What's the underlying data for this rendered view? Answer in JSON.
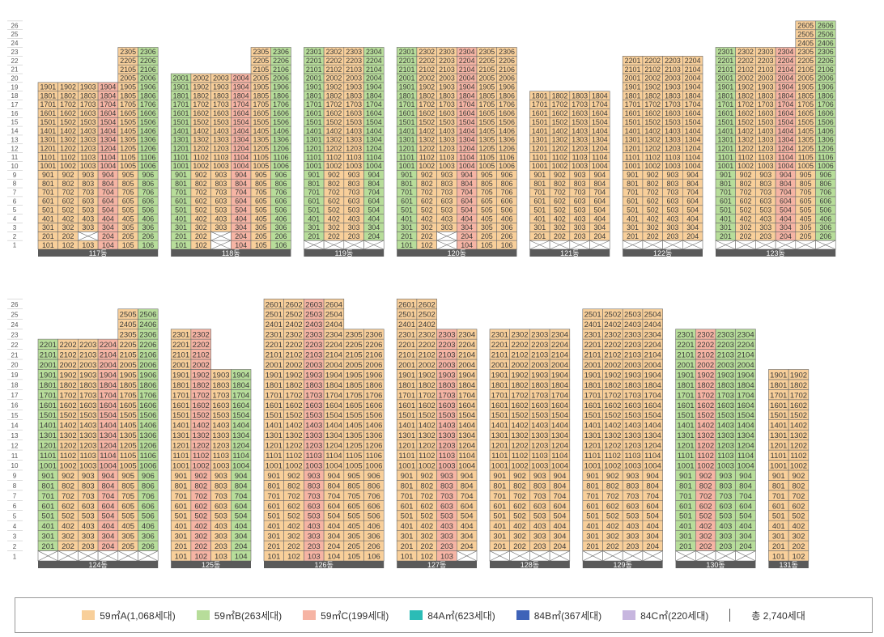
{
  "colors": {
    "A": "#f8cf9a",
    "B": "#b7dd9a",
    "C": "#f6b4a4",
    "D": "#2bbcb6",
    "E": "#3f63b8",
    "F": "#c7b6df",
    "none": "#ffffff",
    "base": "#5a5a5a"
  },
  "floor_labels": [
    "1",
    "2",
    "3",
    "4",
    "5",
    "6",
    "7",
    "8",
    "9",
    "10",
    "11",
    "12",
    "13",
    "14",
    "15",
    "16",
    "17",
    "18",
    "19",
    "20",
    "21",
    "22",
    "23",
    "24",
    "25",
    "26"
  ],
  "buildings": [
    {
      "name": "117동",
      "row": 0,
      "columns": [
        {
          "bottom": 1,
          "top": 19,
          "colors": "AAAAAAAAAAAAAAAAAAA",
          "void": []
        },
        {
          "bottom": 1,
          "top": 19,
          "colors": "AAAAAAAAAAAAAAAAAAA",
          "void": []
        },
        {
          "bottom": 1,
          "top": 19,
          "colors": "AAAAAAAAAAAAAAAAAAA",
          "void": [
            2
          ]
        },
        {
          "bottom": 1,
          "top": 19,
          "colors": "CCCCCCCCCCCCCCCCCCC",
          "void": []
        },
        {
          "bottom": 1,
          "top": 23,
          "colors": "AAAAAAAAAAAAAAAAAAAAAAA",
          "void": []
        },
        {
          "bottom": 1,
          "top": 23,
          "colors": "BBBBBBBBBBBBBBBBBBBBBBB",
          "void": []
        }
      ]
    },
    {
      "name": "118동",
      "row": 0,
      "columns": [
        {
          "bottom": 1,
          "top": 20,
          "colors": "BBBBBBBBBBBBBBBBBBBB",
          "void": []
        },
        {
          "bottom": 1,
          "top": 20,
          "colors": "AAAAAAAAAAAAAAAAAAAA",
          "void": []
        },
        {
          "bottom": 1,
          "top": 20,
          "colors": "AAAAAAAAAAAAAAAAAAAA",
          "void": [
            1,
            2
          ]
        },
        {
          "bottom": 1,
          "top": 20,
          "colors": "CCCCCCCCCCCCCCCCCCCC",
          "void": []
        },
        {
          "bottom": 1,
          "top": 23,
          "colors": "AAAAAAAAAAAAAAAAAAAAAAA",
          "void": []
        },
        {
          "bottom": 1,
          "top": 23,
          "colors": "BBBBBBBBBBBBBBBBBBBBBBB",
          "void": []
        }
      ]
    },
    {
      "name": "119동",
      "row": 0,
      "columns": [
        {
          "bottom": 2,
          "top": 23,
          "colors": "BBBBBBBBBBBBBBBBBBBBBB",
          "void": []
        },
        {
          "bottom": 2,
          "top": 23,
          "colors": "AAAAAAAAAAAAAAAAAAAAAA",
          "void": []
        },
        {
          "bottom": 2,
          "top": 23,
          "colors": "AAAAAAAAAAAAAAAAAAAAAA",
          "void": []
        },
        {
          "bottom": 2,
          "top": 23,
          "colors": "BBBBBBBBBBBBBBBBBBBBBB",
          "void": []
        }
      ]
    },
    {
      "name": "120동",
      "row": 0,
      "columns": [
        {
          "bottom": 1,
          "top": 23,
          "colors": "BBBBBBBBBBBBBBBBBBBBBBB",
          "void": []
        },
        {
          "bottom": 1,
          "top": 23,
          "colors": "AAAAAAAAAAAAAAAAAAAAAAA",
          "void": []
        },
        {
          "bottom": 1,
          "top": 23,
          "colors": "AAAAAAAAAAAAAAAAAAAAAAA",
          "void": [
            1,
            2
          ]
        },
        {
          "bottom": 1,
          "top": 23,
          "colors": "CCCCCCCCCCCCCCCCCCCCCCC",
          "void": []
        },
        {
          "bottom": 1,
          "top": 23,
          "colors": "AAAAAAAAAAAAAAAAAAAAAAA",
          "void": []
        },
        {
          "bottom": 1,
          "top": 23,
          "colors": "AAAAAAAAAAAAAAAAAAAAAAA",
          "void": []
        }
      ]
    },
    {
      "name": "121동",
      "row": 0,
      "columns": [
        {
          "bottom": 2,
          "top": 18,
          "colors": "AAAAAAAAAAAAAAAAA",
          "void": []
        },
        {
          "bottom": 2,
          "top": 18,
          "colors": "AAAAAAAAAAAAAAAAA",
          "void": []
        },
        {
          "bottom": 2,
          "top": 18,
          "colors": "AAAAAAAAAAAAAAAAA",
          "void": []
        },
        {
          "bottom": 2,
          "top": 18,
          "colors": "AAAAAAAAAAAAAAAAA",
          "void": []
        }
      ]
    },
    {
      "name": "122동",
      "row": 0,
      "columns": [
        {
          "bottom": 2,
          "top": 22,
          "colors": "AAAAAAAAAAAAAAAAAAAAA",
          "void": []
        },
        {
          "bottom": 2,
          "top": 22,
          "colors": "AAAAAAAAAAAAAAAAAAAAA",
          "void": []
        },
        {
          "bottom": 2,
          "top": 22,
          "colors": "AAAAAAAAAAAAAAAAAAAAA",
          "void": []
        },
        {
          "bottom": 2,
          "top": 22,
          "colors": "AAAAAAAAAAAAAAAAAAAAA",
          "void": []
        }
      ]
    },
    {
      "name": "123동",
      "row": 0,
      "columns": [
        {
          "bottom": 2,
          "top": 23,
          "colors": "BBBBBBBBBBBBBBBBBBBBBB",
          "void": []
        },
        {
          "bottom": 2,
          "top": 23,
          "colors": "AAAAAAAAAAAAAAAAAAAAAA",
          "void": []
        },
        {
          "bottom": 2,
          "top": 23,
          "colors": "AAAAAAAAAAAAAAAAAAAAAA",
          "void": []
        },
        {
          "bottom": 2,
          "top": 23,
          "colors": "CCCCCCCCCCCCCCCCCCCCCC",
          "void": []
        },
        {
          "bottom": 2,
          "top": 26,
          "colors": "AAAAAAAAAAAAAAAAAAAAAAAAA",
          "void": []
        },
        {
          "bottom": 2,
          "top": 26,
          "colors": "BBBBBBBBBBBBBBBBBBBBBBBBB",
          "void": []
        }
      ]
    },
    {
      "name": "124동",
      "row": 1,
      "columns": [
        {
          "bottom": 2,
          "top": 22,
          "colors": "BBBBBBBBBBBBBBBBBBBBB",
          "void": []
        },
        {
          "bottom": 2,
          "top": 22,
          "colors": "AAAAAAAAAAAAAAAAAAAAA",
          "void": []
        },
        {
          "bottom": 2,
          "top": 22,
          "colors": "AAAAAAAAAAAAAAAAAAAAA",
          "void": []
        },
        {
          "bottom": 2,
          "top": 22,
          "colors": "CCCCCCCCCCCCCCCCCCCCC",
          "void": []
        },
        {
          "bottom": 2,
          "top": 25,
          "colors": "AAAAAAAAAAAAAAAAAAAAAAAA",
          "void": []
        },
        {
          "bottom": 2,
          "top": 25,
          "colors": "BBBBBBBBBBBBBBBBBBBBBBBB",
          "void": []
        }
      ]
    },
    {
      "name": "125동",
      "row": 1,
      "columns": [
        {
          "bottom": 1,
          "top": 23,
          "colors": "AAAAAAAAAAAAAAAAAAAAAAA",
          "void": []
        },
        {
          "bottom": 1,
          "top": 23,
          "colors": "CCCCCCCCCCCCCCCCCCCCCCC",
          "void": []
        },
        {
          "bottom": 1,
          "top": 19,
          "colors": "AAAAAAAAAAAAAAAAAAA",
          "void": []
        },
        {
          "bottom": 1,
          "top": 19,
          "colors": "BBBBBBBBBBBBBBBBBBB",
          "void": []
        }
      ]
    },
    {
      "name": "126동",
      "row": 1,
      "columns": [
        {
          "bottom": 1,
          "top": 26,
          "colors": "AAAAAAAAAAAAAAAAAAAAAAAAAA",
          "void": []
        },
        {
          "bottom": 1,
          "top": 26,
          "colors": "AAAAAAAAAAAAAAAAAAAAAAAAAA",
          "void": []
        },
        {
          "bottom": 1,
          "top": 26,
          "colors": "CCCCCCCCCCCCCCCCCCCCCCCCCC",
          "void": []
        },
        {
          "bottom": 1,
          "top": 26,
          "colors": "AAAAAAAAAAAAAAAAAAAAAAAAAA",
          "void": []
        },
        {
          "bottom": 1,
          "top": 23,
          "colors": "AAAAAAAAAAAAAAAAAAAAAAA",
          "void": []
        },
        {
          "bottom": 1,
          "top": 23,
          "colors": "AAAAAAAAAAAAAAAAAAAAAAA",
          "void": []
        }
      ]
    },
    {
      "name": "127동",
      "row": 1,
      "columns": [
        {
          "bottom": 1,
          "top": 26,
          "colors": "AAAAAAAAAAAAAAAAAAAAAAAAAA",
          "void": []
        },
        {
          "bottom": 1,
          "top": 26,
          "colors": "AAAAAAAAAAAAAAAAAAAAAAAAAA",
          "void": []
        },
        {
          "bottom": 1,
          "top": 23,
          "colors": "CCCCCCCCCCCCCCCCCCCCCCC",
          "void": []
        },
        {
          "bottom": 2,
          "top": 23,
          "colors": "AAAAAAAAAAAAAAAAAAAAAA",
          "void": []
        }
      ]
    },
    {
      "name": "128동",
      "row": 1,
      "columns": [
        {
          "bottom": 2,
          "top": 23,
          "colors": "AAAAAAAAAAAAAAAAAAAAAA",
          "void": []
        },
        {
          "bottom": 2,
          "top": 23,
          "colors": "AAAAAAAAAAAAAAAAAAAAAA",
          "void": []
        },
        {
          "bottom": 2,
          "top": 23,
          "colors": "AAAAAAAAAAAAAAAAAAAAAA",
          "void": []
        },
        {
          "bottom": 2,
          "top": 23,
          "colors": "AAAAAAAAAAAAAAAAAAAAAA",
          "void": []
        }
      ]
    },
    {
      "name": "129동",
      "row": 1,
      "columns": [
        {
          "bottom": 2,
          "top": 25,
          "colors": "AAAAAAAAAAAAAAAAAAAAAAAA",
          "void": []
        },
        {
          "bottom": 2,
          "top": 25,
          "colors": "AAAAAAAAAAAAAAAAAAAAAAAA",
          "void": []
        },
        {
          "bottom": 2,
          "top": 25,
          "colors": "AAAAAAAAAAAAAAAAAAAAAAAA",
          "void": []
        },
        {
          "bottom": 2,
          "top": 25,
          "colors": "AAAAAAAAAAAAAAAAAAAAAAAA",
          "void": []
        }
      ]
    },
    {
      "name": "130동",
      "row": 1,
      "columns": [
        {
          "bottom": 2,
          "top": 23,
          "colors": "BBBBBBBBBBBBBBBBBBBBBB",
          "void": []
        },
        {
          "bottom": 2,
          "top": 23,
          "colors": "CCCCCCCCCCCCCCCCCCCCCC",
          "void": []
        },
        {
          "bottom": 2,
          "top": 23,
          "colors": "BBBBBBBBBBBBBBBBBBBBBB",
          "void": []
        },
        {
          "bottom": 2,
          "top": 23,
          "colors": "BBBBBBBBBBBBBBBBBBBBBB",
          "void": []
        }
      ]
    },
    {
      "name": "131동",
      "row": 1,
      "columns": [
        {
          "bottom": 1,
          "top": 19,
          "colors": "AAAAAAAAAAAAAAAAAAA",
          "void": []
        },
        {
          "bottom": 1,
          "top": 19,
          "colors": "AAAAAAAAAAAAAAAAAAA",
          "void": []
        }
      ]
    }
  ],
  "legend": [
    {
      "key": "A",
      "label": "59㎡A(1,068세대)"
    },
    {
      "key": "B",
      "label": "59㎡B(263세대)"
    },
    {
      "key": "C",
      "label": "59㎡C(199세대)"
    },
    {
      "key": "D",
      "label": "84A㎡(623세대)"
    },
    {
      "key": "E",
      "label": "84B㎡(367세대)"
    },
    {
      "key": "F",
      "label": "84C㎡(220세대)"
    }
  ],
  "total_label": "총 2,740세대"
}
